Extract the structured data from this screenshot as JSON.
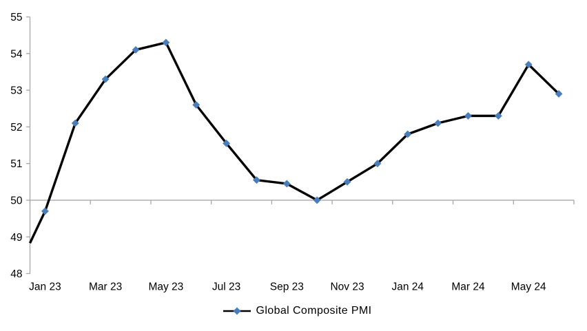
{
  "chart_data": {
    "type": "line",
    "title": "",
    "categories": [
      "Jan 23",
      "Feb 23",
      "Mar 23",
      "Apr 23",
      "May 23",
      "Jun 23",
      "Jul 23",
      "Aug 23",
      "Sep 23",
      "Oct 23",
      "Nov 23",
      "Dec 23",
      "Jan 24",
      "Feb 24",
      "Mar 24",
      "Apr 24",
      "May 24",
      "Jun 24"
    ],
    "series": [
      {
        "name": "Global Composite PMI",
        "values": [
          49.7,
          52.1,
          53.3,
          54.1,
          54.3,
          52.6,
          51.55,
          50.55,
          50.45,
          50.0,
          50.5,
          51.0,
          51.8,
          52.1,
          52.3,
          52.3,
          53.7,
          52.9
        ]
      }
    ],
    "lead_in": {
      "value_at_left_edge": 48.83
    },
    "x_axis": {
      "visible_tick_labels": [
        "Jan 23",
        "Mar 23",
        "May 23",
        "Jul 23",
        "Sep 23",
        "Nov 23",
        "Jan 24",
        "Mar 24",
        "May 24"
      ],
      "label_interval": 2,
      "axis_crosses_at": 50
    },
    "y_axis": {
      "min": 48,
      "max": 55,
      "step": 1,
      "tick_labels": [
        "55",
        "54",
        "53",
        "52",
        "51",
        "50",
        "49",
        "48"
      ]
    },
    "legend": {
      "label": "Global Composite PMI",
      "position": "bottom"
    },
    "grid": "off",
    "colors": {
      "line": "#000000",
      "marker": "#4A7EBB",
      "axis": "#A6A6A6",
      "text": "#000000",
      "background": "#FFFFFF"
    }
  }
}
